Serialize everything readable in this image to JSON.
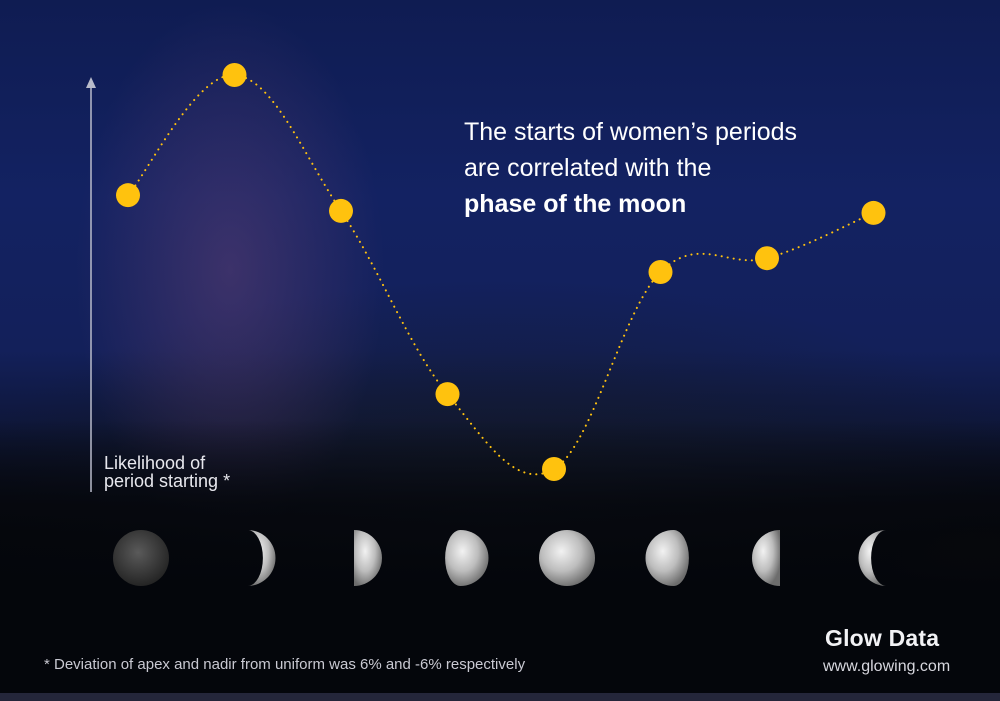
{
  "headline": {
    "line1": "The starts of women’s periods",
    "line2": "are correlated with the",
    "emphasis": "phase of the moon"
  },
  "footnote": "* Deviation of apex and nadir from uniform was 6% and -6% respectively",
  "brand": {
    "name": "Glow Data",
    "url": "www.glowing.com"
  },
  "colors": {
    "point": "#ffc20e",
    "axis": "#b9bccb",
    "text": "#ffffff"
  },
  "chart_data": {
    "type": "line",
    "ylabel_lines": [
      "Likelihood of",
      "period starting *"
    ],
    "x_categories": [
      "new-moon",
      "waxing-crescent",
      "first-quarter",
      "waxing-gibbous",
      "full-moon",
      "waning-gibbous",
      "last-quarter",
      "waning-crescent"
    ],
    "x_category_icons": [
      "moon-new-icon",
      "moon-waxing-crescent-icon",
      "moon-first-quarter-icon",
      "moon-waxing-gibbous-icon",
      "moon-full-icon",
      "moon-waning-gibbous-icon",
      "moon-last-quarter-icon",
      "moon-waning-crescent-icon"
    ],
    "series": [
      {
        "values": [
          0.39,
          1.0,
          0.31,
          -0.62,
          -1.0,
          0.0,
          0.07,
          0.3
        ],
        "line_style": "dotted"
      }
    ],
    "ylim": [
      -1,
      1
    ],
    "y_ticks_shown": false,
    "grid": false
  }
}
